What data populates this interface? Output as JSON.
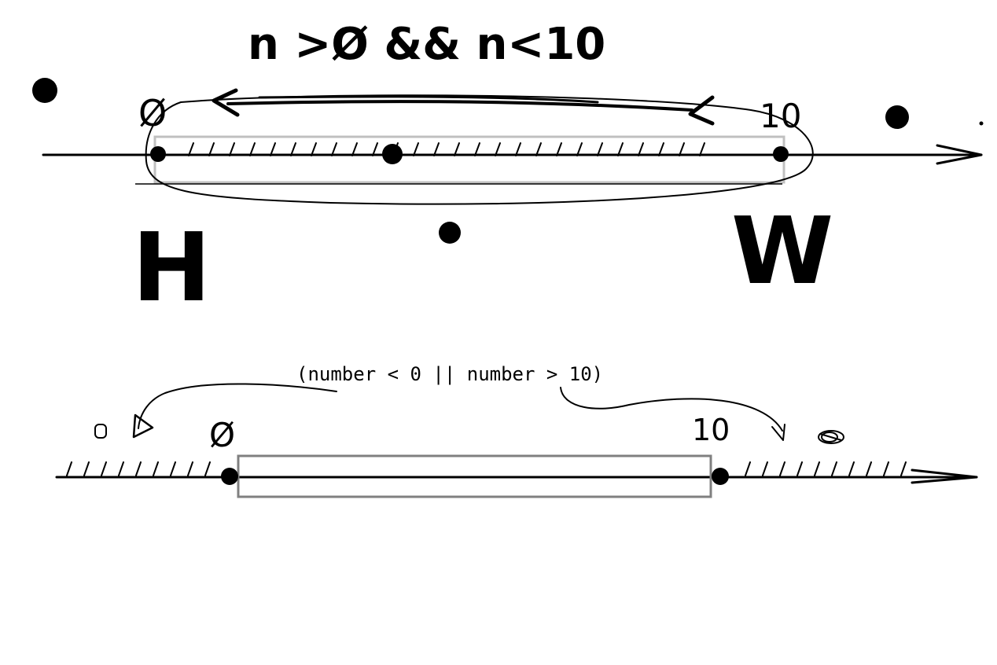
{
  "top_diagram": {
    "condition": "n >Ø && n<10",
    "left_tick": "Ø",
    "right_tick": "10",
    "left_letter": "H",
    "right_letter": "W"
  },
  "bottom_diagram": {
    "condition": "(number < 0 || number > 10)",
    "left_tick": "Ø",
    "right_tick": "10"
  },
  "colors": {
    "ink": "#000000",
    "box_top": "#c0c0c0",
    "box_bottom": "#808080",
    "background": "#ffffff"
  }
}
